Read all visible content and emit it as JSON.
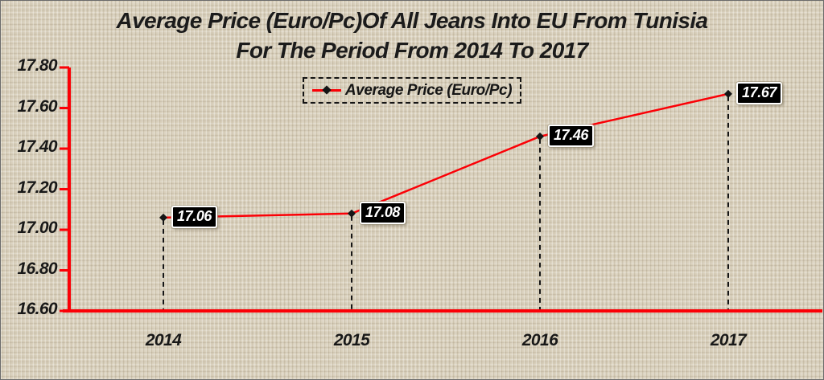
{
  "title": {
    "line1": "Average Price (Euro/Pc)Of All Jeans Into EU From Tunisia",
    "line2": "For The Period From 2014 To 2017"
  },
  "legend": {
    "label": "Average Price (Euro/Pc)"
  },
  "chart_data": {
    "type": "line",
    "title": "Average Price (Euro/Pc)Of All Jeans Into EU From Tunisia For The Period From 2014 To 2017",
    "categories": [
      "2014",
      "2015",
      "2016",
      "2017"
    ],
    "series": [
      {
        "name": "Average Price (Euro/Pc)",
        "values": [
          17.06,
          17.08,
          17.46,
          17.67
        ],
        "data_labels": [
          "17.06",
          "17.08",
          "17.46",
          "17.67"
        ]
      }
    ],
    "xlabel": "",
    "ylabel": "",
    "ylim": [
      16.6,
      17.8
    ],
    "ytick_step": 0.2,
    "ytick_labels": [
      "17.80",
      "17.60",
      "17.40",
      "17.20",
      "17.00",
      "16.80",
      "16.60"
    ],
    "grid": false,
    "legend_position": "top-center",
    "colors": {
      "line": "#fb0006",
      "axis": "#fb0006",
      "marker": "#151515",
      "drop_line": "#151515",
      "label_bg": "#000000",
      "label_text": "#ffffff",
      "text": "#181818",
      "background": "#d9d0bc"
    }
  }
}
